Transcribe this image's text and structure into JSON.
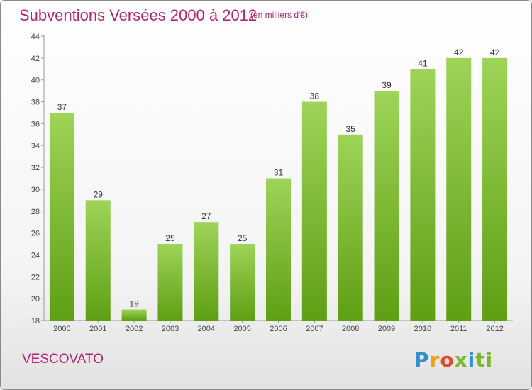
{
  "header": {
    "title": "Subventions Versées 2000 à 2012",
    "subtitle": "(en milliers d'€)"
  },
  "footer": {
    "commune": "VESCOVATO",
    "logo_text": "Proxiti"
  },
  "colors": {
    "title": "#b0266f",
    "bar_top": "#9ed458",
    "bar_bottom": "#5e9f14"
  },
  "chart_data": {
    "type": "bar",
    "title": "Subventions Versées 2000 à 2012",
    "xlabel": "",
    "ylabel": "",
    "categories": [
      "2000",
      "2001",
      "2002",
      "2003",
      "2004",
      "2005",
      "2006",
      "2007",
      "2008",
      "2009",
      "2010",
      "2011",
      "2012"
    ],
    "values": [
      37,
      29,
      19,
      25,
      27,
      25,
      31,
      38,
      35,
      39,
      41,
      42,
      42
    ],
    "ylim": [
      18,
      44
    ],
    "yticks": [
      18,
      20,
      22,
      24,
      26,
      28,
      30,
      32,
      34,
      36,
      38,
      40,
      42,
      44
    ],
    "grid": false,
    "legend": "none"
  }
}
